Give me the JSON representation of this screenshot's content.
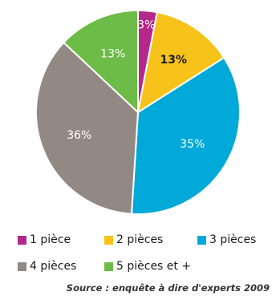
{
  "chart_data": {
    "type": "pie",
    "categories": [
      "1 pièce",
      "2 pièces",
      "3 pièces",
      "4 pièces",
      "5 pièces et +"
    ],
    "values": [
      3,
      13,
      35,
      36,
      13
    ],
    "labels": [
      "3%",
      "13%",
      "35%",
      "36%",
      "13%"
    ],
    "colors": [
      "#b5288b",
      "#f7c21a",
      "#00a9d8",
      "#928985",
      "#6cbc47"
    ],
    "legend_position": "bottom",
    "source": "Source : enquête à dire d'experts 2009"
  }
}
